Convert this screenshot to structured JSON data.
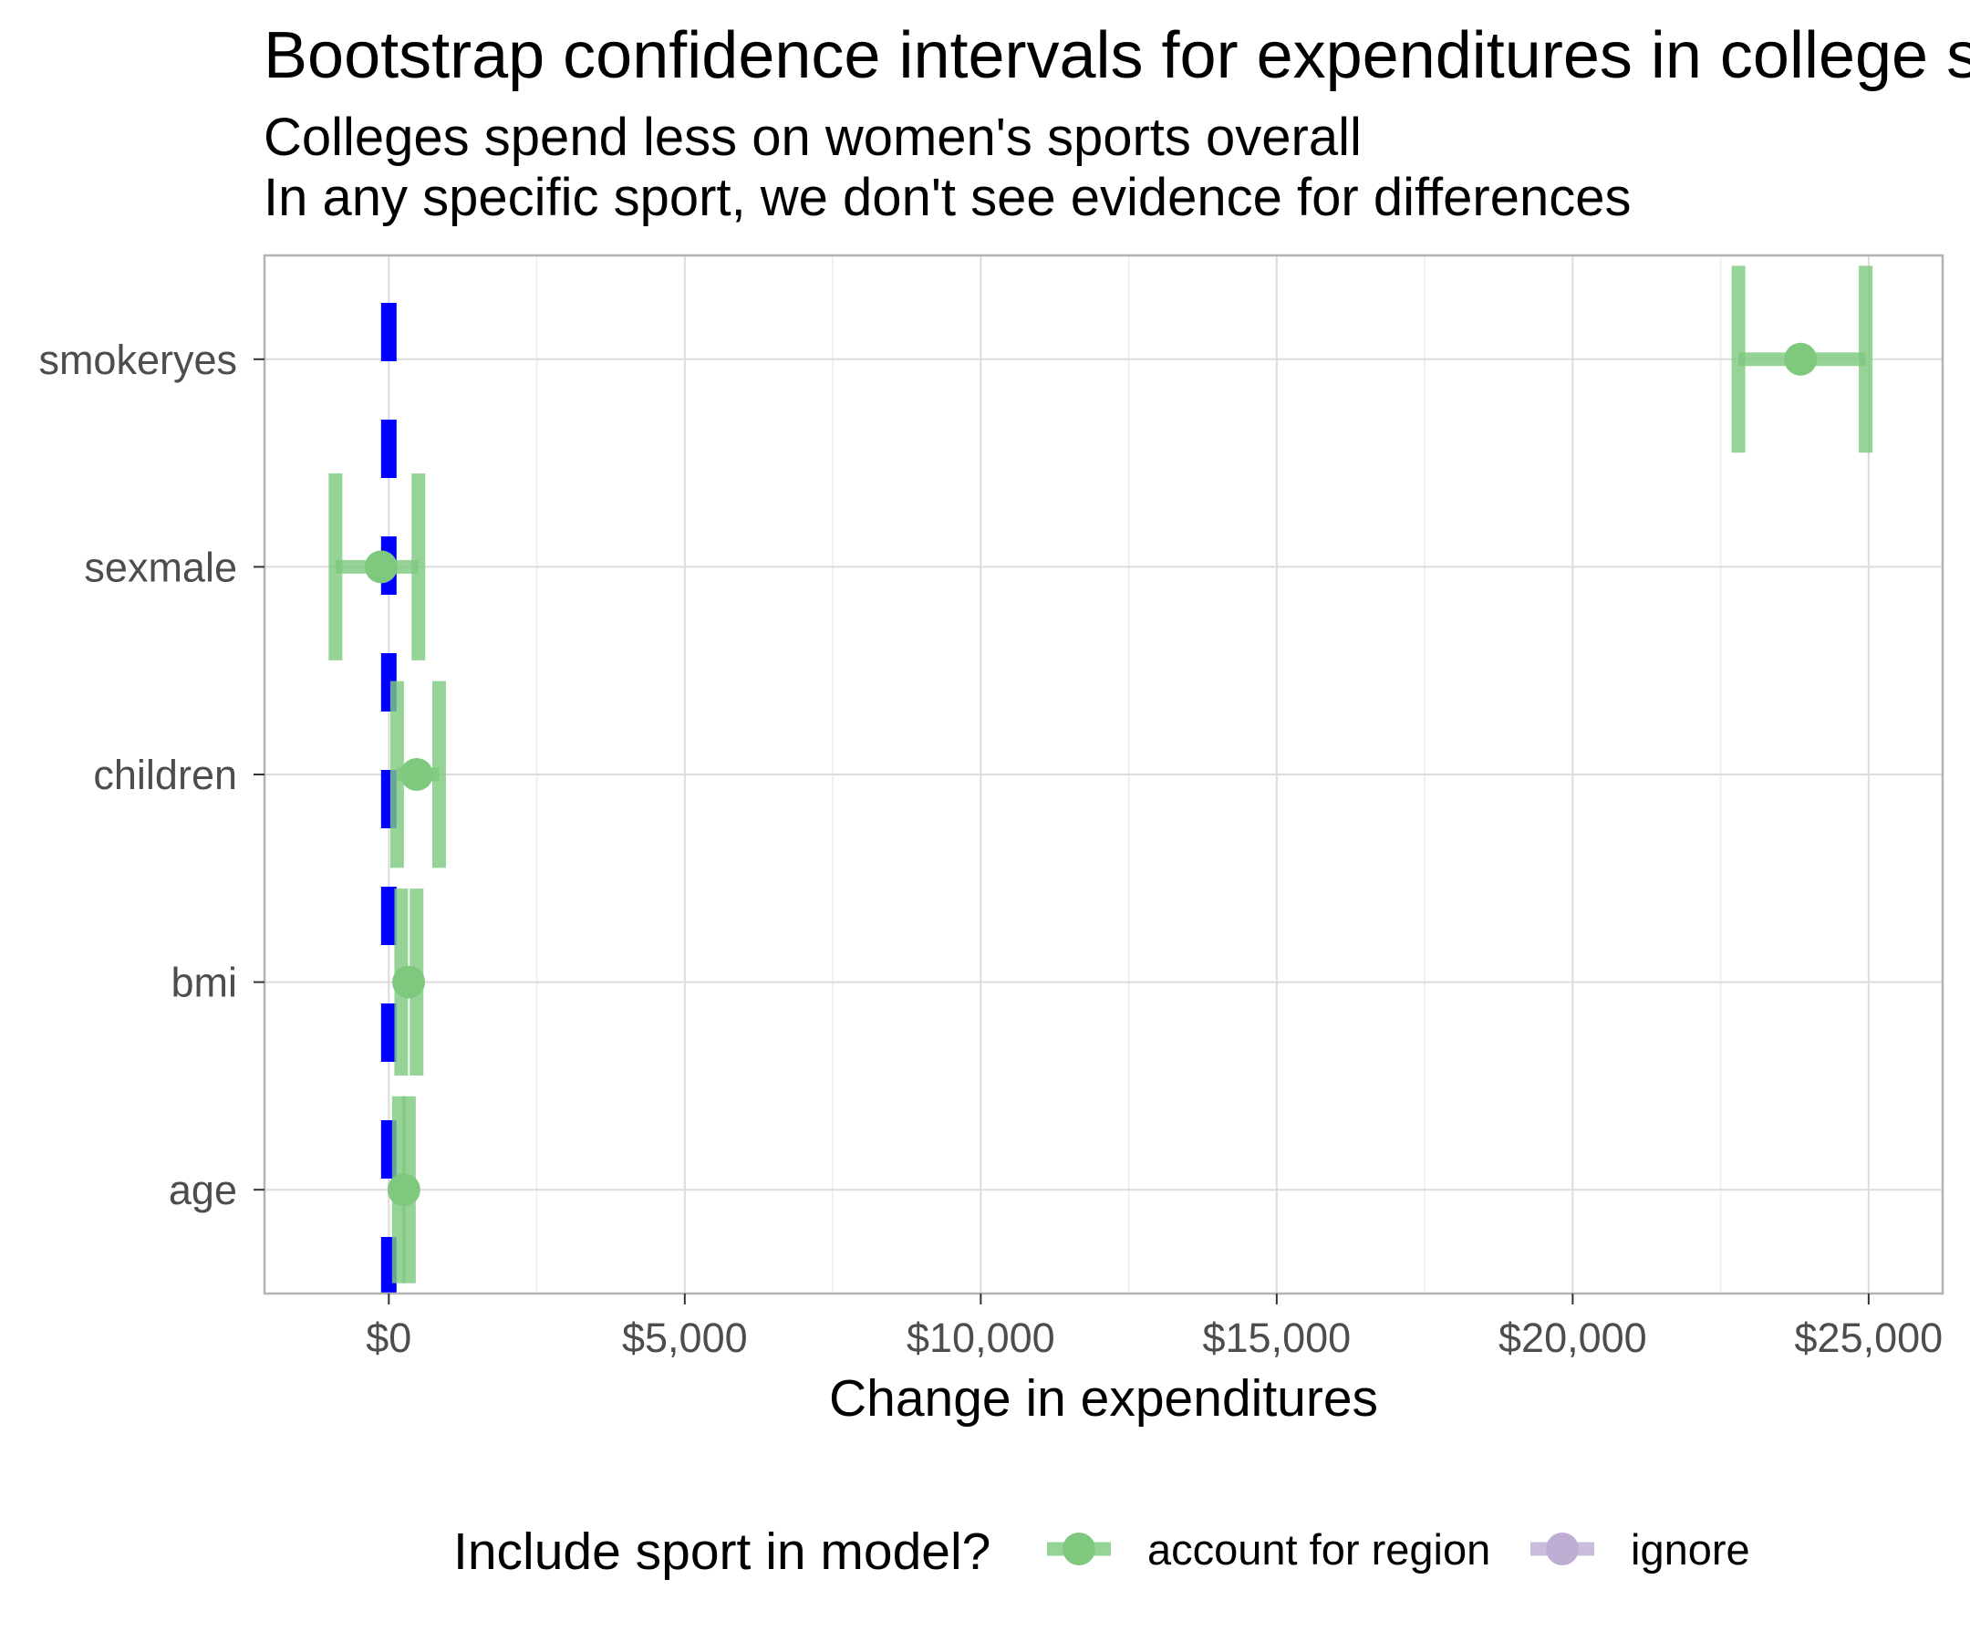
{
  "chart_data": {
    "type": "errorbar",
    "title": "Bootstrap confidence intervals for expenditures in college s",
    "subtitle_lines": [
      "Colleges spend less on women's sports overall",
      "In any specific sport, we don't see evidence for differences"
    ],
    "xlabel": "Change in expenditures",
    "ylabel": "",
    "xlim": [
      -2100,
      26250
    ],
    "x_ticks": [
      0,
      5000,
      10000,
      15000,
      20000,
      25000
    ],
    "x_tick_labels": [
      "$0",
      "$5,000",
      "$10,000",
      "$15,000",
      "$20,000",
      "$25,000"
    ],
    "x_minor_ticks": [
      2500,
      7500,
      12500,
      17500,
      22500
    ],
    "categories": [
      "age",
      "bmi",
      "children",
      "sexmale",
      "smokeryes"
    ],
    "reference_line": {
      "x": 0,
      "style": "dashed",
      "color": "#0000ff"
    },
    "series": [
      {
        "name": "account for region",
        "color": "#7fc97f",
        "points": [
          {
            "category": "age",
            "estimate": 255,
            "low": 170,
            "high": 340
          },
          {
            "category": "bmi",
            "estimate": 335,
            "low": 210,
            "high": 470
          },
          {
            "category": "children",
            "estimate": 470,
            "low": 140,
            "high": 850
          },
          {
            "category": "sexmale",
            "estimate": -130,
            "low": -900,
            "high": 500
          },
          {
            "category": "smokeryes",
            "estimate": 23850,
            "low": 22800,
            "high": 24950
          }
        ]
      },
      {
        "name": "ignore",
        "color": "#beaed4",
        "points": []
      }
    ],
    "legend": {
      "title": "Include sport in model?",
      "position": "bottom",
      "entries": [
        "account for region",
        "ignore"
      ]
    },
    "grid": true
  }
}
